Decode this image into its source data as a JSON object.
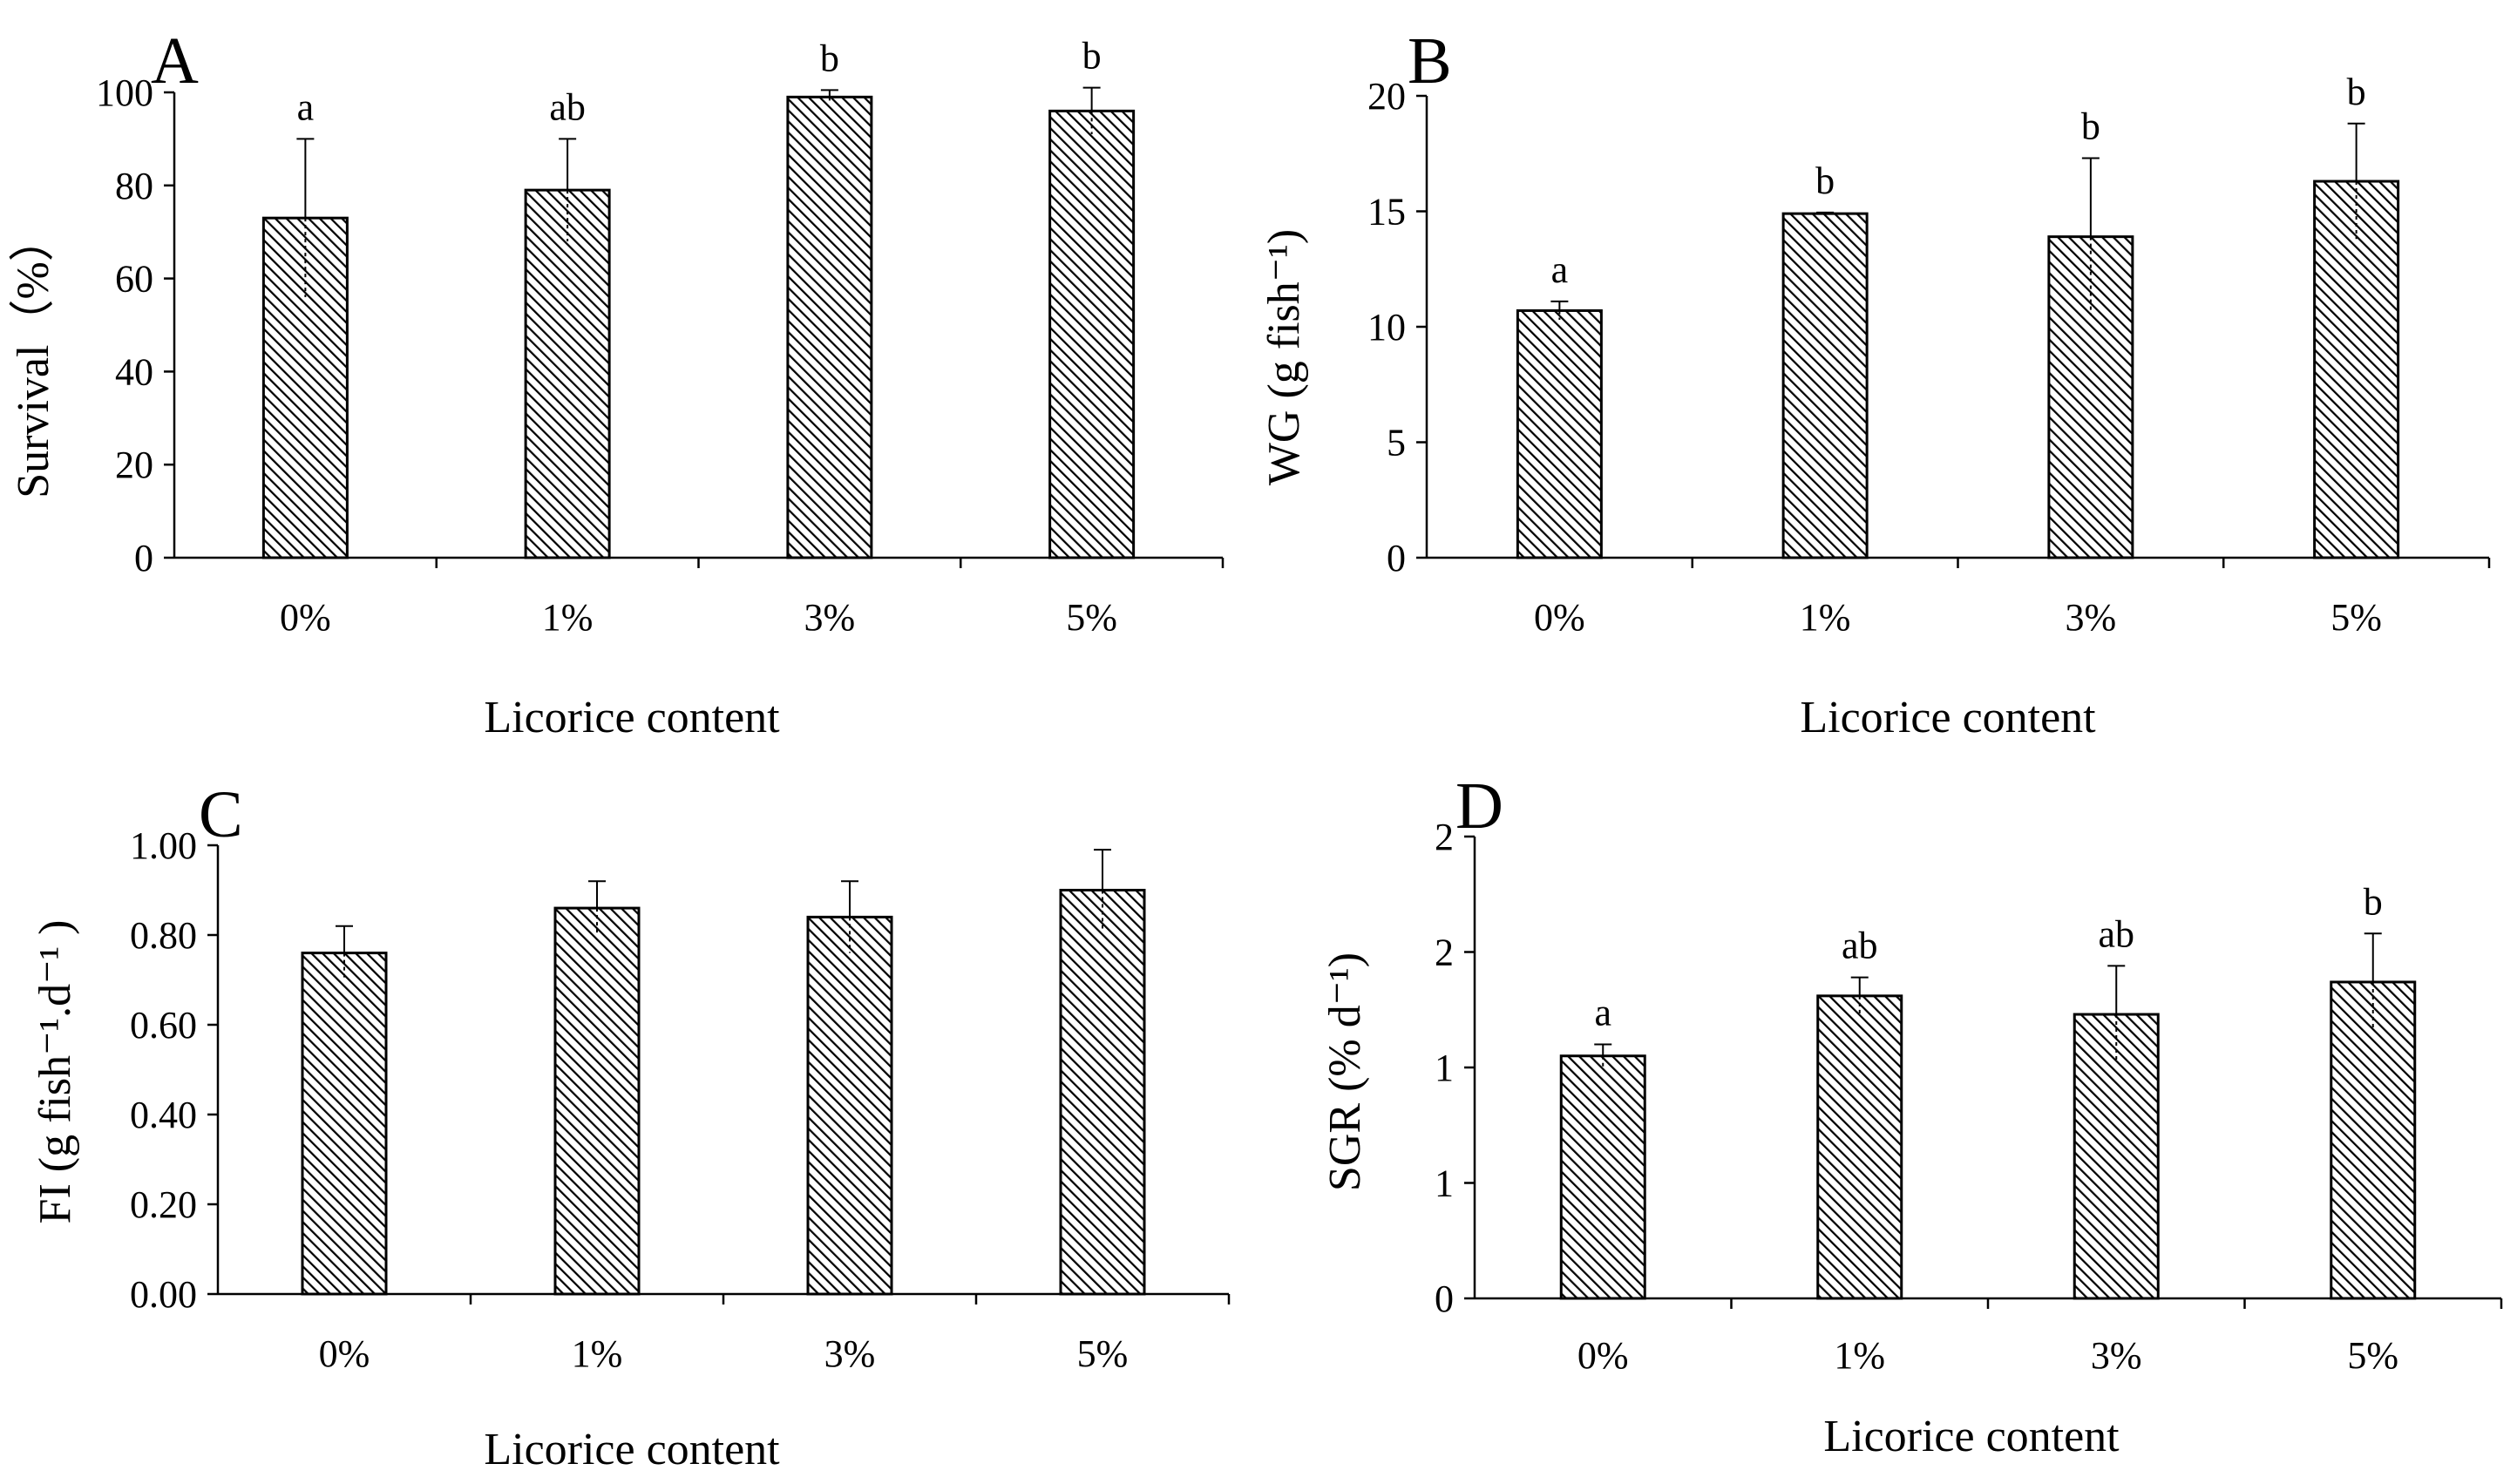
{
  "chart_data": [
    {
      "panel": "A",
      "type": "bar",
      "categories": [
        "0%",
        "1%",
        "3%",
        "5%"
      ],
      "values": [
        73,
        79,
        99,
        96
      ],
      "errors": [
        17,
        11,
        1.5,
        5
      ],
      "significance": [
        "a",
        "ab",
        "b",
        "b"
      ],
      "ylabel": "Survival（%）",
      "xlabel": "Licorice content",
      "yticks": [
        "0",
        "20",
        "40",
        "60",
        "80",
        "100"
      ],
      "ylim": [
        0,
        100
      ]
    },
    {
      "panel": "B",
      "type": "bar",
      "categories": [
        "0%",
        "1%",
        "3%",
        "5%"
      ],
      "values": [
        10.7,
        14.9,
        13.9,
        16.3
      ],
      "errors": [
        0.4,
        0.05,
        3.4,
        2.5
      ],
      "significance": [
        "a",
        "b",
        "b",
        "b"
      ],
      "ylabel": "WG (g fish⁻¹)",
      "xlabel": "Licorice content",
      "yticks": [
        "0",
        "5",
        "10",
        "15",
        "20"
      ],
      "ylim": [
        0,
        20
      ]
    },
    {
      "panel": "C",
      "type": "bar",
      "categories": [
        "0%",
        "1%",
        "3%",
        "5%"
      ],
      "values": [
        0.76,
        0.86,
        0.84,
        0.9
      ],
      "errors": [
        0.06,
        0.06,
        0.08,
        0.09
      ],
      "significance": [
        "",
        "",
        "",
        ""
      ],
      "ylabel": "FI (g fish⁻¹.d⁻¹ )",
      "xlabel": "Licorice content",
      "yticks": [
        "0.00",
        "0.20",
        "0.40",
        "0.60",
        "0.80",
        "1.00"
      ],
      "ylim": [
        0,
        1
      ]
    },
    {
      "panel": "D",
      "type": "bar",
      "categories": [
        "0%",
        "1%",
        "3%",
        "5%"
      ],
      "values": [
        1.05,
        1.31,
        1.23,
        1.37
      ],
      "errors": [
        0.05,
        0.08,
        0.21,
        0.21
      ],
      "significance": [
        "a",
        "ab",
        "ab",
        "b"
      ],
      "ylabel": "SGR (% d⁻¹)",
      "xlabel": "Licorice content",
      "yticks": [
        "0",
        "1",
        "1",
        "2",
        "2"
      ],
      "ylim": [
        0,
        2
      ]
    }
  ]
}
